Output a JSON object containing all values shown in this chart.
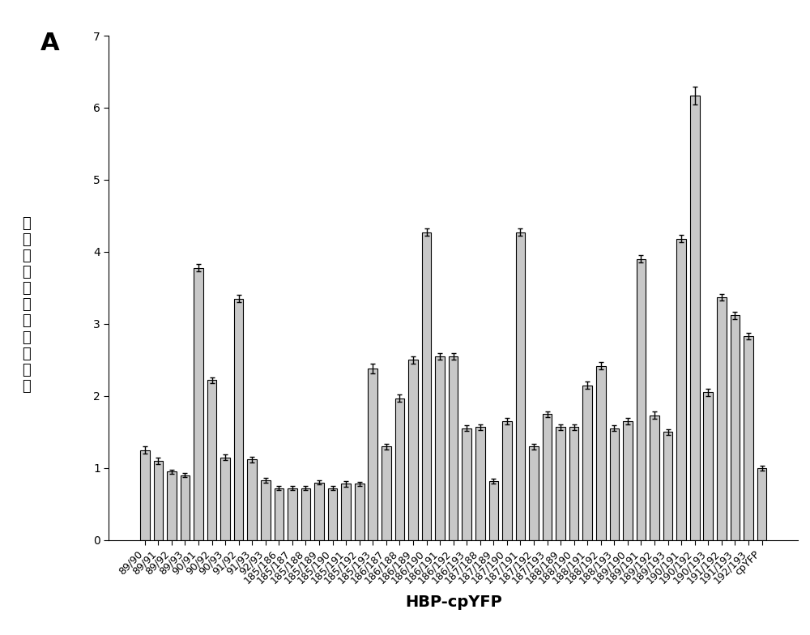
{
  "categories": [
    "89/90",
    "89/91",
    "89/92",
    "89/93",
    "90/91",
    "90/92",
    "90/93",
    "91/92",
    "91/93",
    "92/93",
    "185/186",
    "185/187",
    "185/188",
    "185/189",
    "185/190",
    "185/191",
    "185/192",
    "185/193",
    "186/187",
    "186/188",
    "186/189",
    "186/190",
    "186/191",
    "186/192",
    "186/193",
    "187/188",
    "187/189",
    "187/190",
    "187/191",
    "187/192",
    "187/193",
    "188/189",
    "188/190",
    "188/191",
    "188/192",
    "188/193",
    "189/190",
    "189/191",
    "189/192",
    "189/193",
    "190/191",
    "190/192",
    "190/193",
    "191/192",
    "191/193",
    "192/193",
    "cpYFP"
  ],
  "values": [
    1.25,
    1.1,
    0.95,
    0.9,
    3.78,
    2.22,
    1.15,
    3.35,
    1.12,
    0.83,
    0.72,
    0.72,
    0.72,
    0.8,
    0.72,
    0.78,
    0.78,
    2.38,
    1.3,
    1.97,
    2.5,
    4.27,
    2.55,
    2.55,
    1.55,
    1.57,
    0.82,
    1.65,
    4.27,
    1.3,
    1.75,
    1.57,
    1.57,
    2.15,
    2.42,
    1.55,
    1.65,
    3.9,
    1.73,
    1.5,
    4.18,
    6.17,
    2.05,
    3.37,
    3.12,
    2.83,
    1.0
  ],
  "errors": [
    0.05,
    0.04,
    0.03,
    0.03,
    0.05,
    0.04,
    0.04,
    0.05,
    0.04,
    0.03,
    0.03,
    0.03,
    0.03,
    0.03,
    0.03,
    0.04,
    0.03,
    0.07,
    0.04,
    0.05,
    0.05,
    0.05,
    0.05,
    0.05,
    0.04,
    0.04,
    0.03,
    0.05,
    0.05,
    0.04,
    0.04,
    0.04,
    0.04,
    0.05,
    0.05,
    0.04,
    0.05,
    0.05,
    0.05,
    0.04,
    0.05,
    0.12,
    0.05,
    0.05,
    0.05,
    0.05,
    0.03
  ],
  "bar_color": "#c8c8c8",
  "bar_edge_color": "#000000",
  "bar_linewidth": 0.8,
  "xlabel": "HBP-cpYFP",
  "ylabel_chars": [
    "标",
    "准",
    "化",
    "后",
    "的",
    "荧",
    "光",
    "信",
    "号",
    "比",
    "値"
  ],
  "title_label": "A",
  "ylim": [
    0,
    7
  ],
  "yticks": [
    0,
    1,
    2,
    3,
    4,
    5,
    6,
    7
  ],
  "xlabel_fontsize": 14,
  "ylabel_fontsize": 13,
  "tick_fontsize": 10,
  "title_fontsize": 22,
  "background_color": "#ffffff",
  "error_color": "#000000",
  "error_capsize": 2,
  "error_linewidth": 1.0
}
